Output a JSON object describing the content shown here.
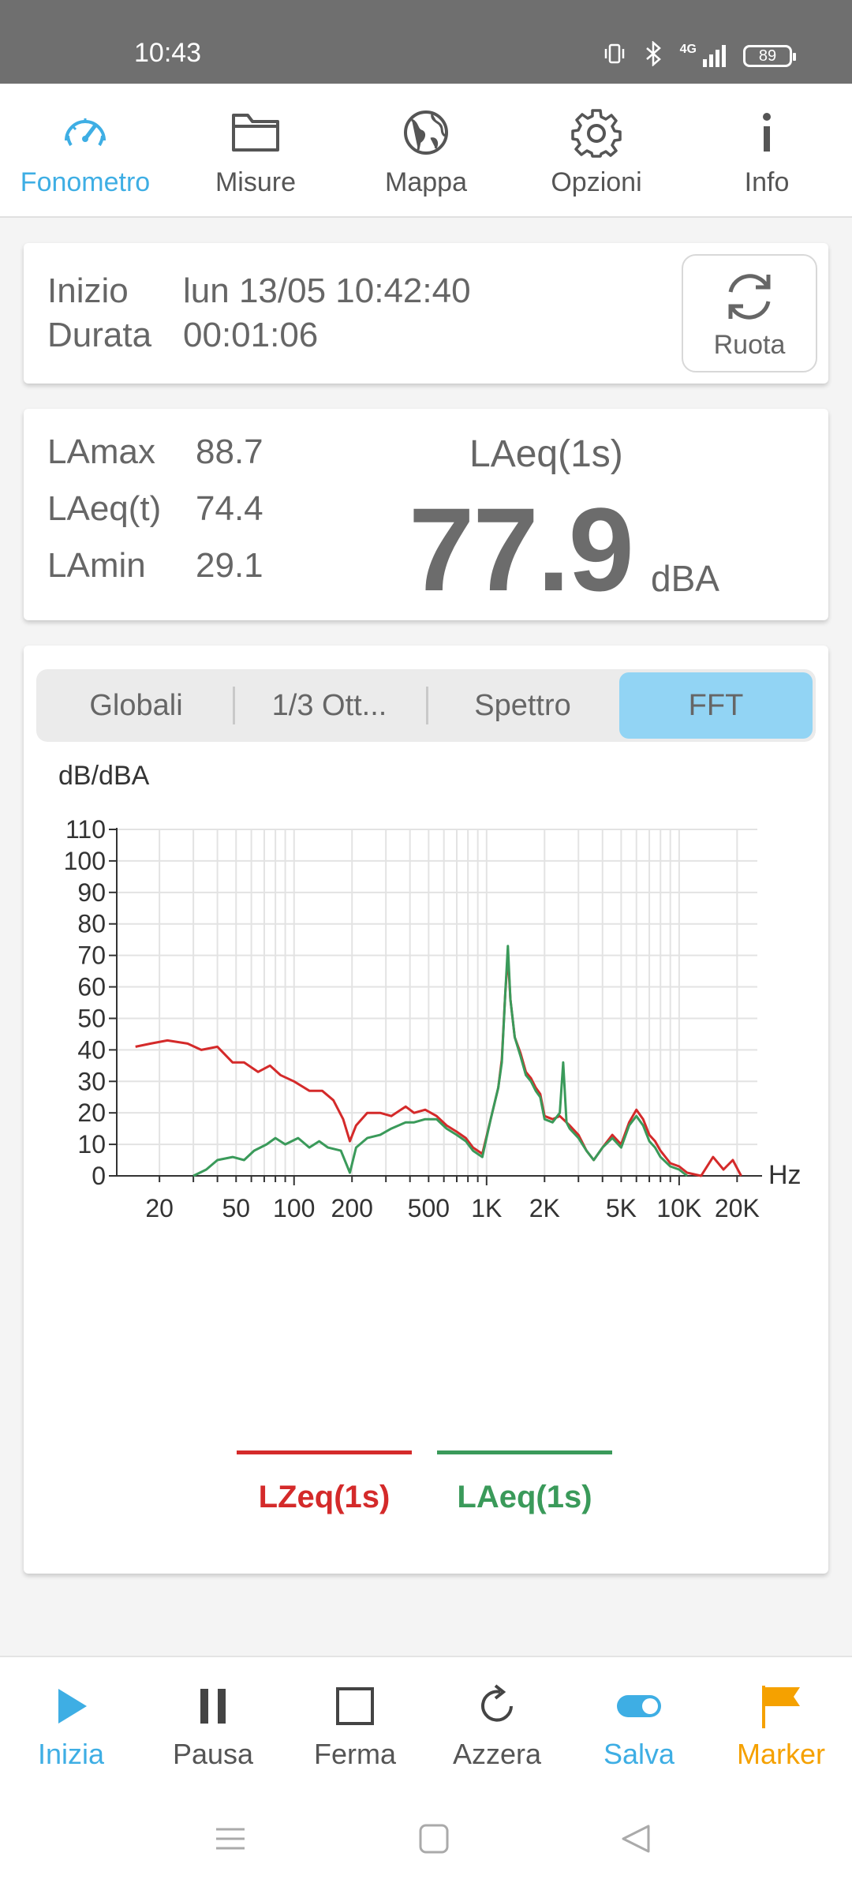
{
  "status_bar": {
    "time": "10:43",
    "network": "4G",
    "battery": "89"
  },
  "top_nav": {
    "items": [
      {
        "label": "Fonometro",
        "icon": "speedometer-icon",
        "active": true
      },
      {
        "label": "Misure",
        "icon": "folder-icon",
        "active": false
      },
      {
        "label": "Mappa",
        "icon": "globe-icon",
        "active": false
      },
      {
        "label": "Opzioni",
        "icon": "gear-icon",
        "active": false
      },
      {
        "label": "Info",
        "icon": "info-icon",
        "active": false
      }
    ]
  },
  "session": {
    "start_label": "Inizio",
    "start_value": "lun 13/05 10:42:40",
    "duration_label": "Durata",
    "duration_value": "00:01:06",
    "rotate_label": "Ruota"
  },
  "levels": {
    "lamax_label": "LAmax",
    "lamax_value": "88.7",
    "laeqt_label": "LAeq(t)",
    "laeqt_value": "74.4",
    "lamin_label": "LAmin",
    "lamin_value": "29.1",
    "main_title": "LAeq(1s)",
    "main_value": "77.9",
    "main_unit": "dBA"
  },
  "tabs": {
    "items": [
      "Globali",
      "1/3 Ott...",
      "Spettro",
      "FFT"
    ],
    "active_index": 3
  },
  "chart_data": {
    "type": "line",
    "ylabel": "dB/dBA",
    "xlabel": "Hz",
    "x_scale": "log",
    "xlim": [
      12,
      25000
    ],
    "ylim": [
      0,
      110
    ],
    "yticks": [
      0,
      10,
      20,
      30,
      40,
      50,
      60,
      70,
      80,
      90,
      100,
      110
    ],
    "xticks": [
      {
        "value": 20,
        "label": "20"
      },
      {
        "value": 50,
        "label": "50"
      },
      {
        "value": 100,
        "label": "100"
      },
      {
        "value": 200,
        "label": "200"
      },
      {
        "value": 500,
        "label": "500"
      },
      {
        "value": 1000,
        "label": "1K"
      },
      {
        "value": 2000,
        "label": "2K"
      },
      {
        "value": 5000,
        "label": "5K"
      },
      {
        "value": 10000,
        "label": "10K"
      },
      {
        "value": 20000,
        "label": "20K"
      }
    ],
    "grid": true,
    "legend_position": "bottom",
    "series": [
      {
        "name": "LZeq(1s)",
        "color": "#d42a2a",
        "points": [
          [
            15,
            41
          ],
          [
            18,
            42
          ],
          [
            22,
            43
          ],
          [
            28,
            42
          ],
          [
            33,
            40
          ],
          [
            40,
            41
          ],
          [
            48,
            36
          ],
          [
            55,
            36
          ],
          [
            65,
            33
          ],
          [
            75,
            35
          ],
          [
            85,
            32
          ],
          [
            100,
            30
          ],
          [
            120,
            27
          ],
          [
            140,
            27
          ],
          [
            160,
            24
          ],
          [
            180,
            18
          ],
          [
            195,
            11
          ],
          [
            210,
            16
          ],
          [
            240,
            20
          ],
          [
            280,
            20
          ],
          [
            320,
            19
          ],
          [
            380,
            22
          ],
          [
            420,
            20
          ],
          [
            480,
            21
          ],
          [
            550,
            19
          ],
          [
            620,
            16
          ],
          [
            700,
            14
          ],
          [
            780,
            12
          ],
          [
            850,
            9
          ],
          [
            950,
            7
          ],
          [
            1050,
            18
          ],
          [
            1150,
            28
          ],
          [
            1200,
            37
          ],
          [
            1250,
            58
          ],
          [
            1290,
            70
          ],
          [
            1330,
            56
          ],
          [
            1400,
            44
          ],
          [
            1500,
            39
          ],
          [
            1600,
            33
          ],
          [
            1700,
            31
          ],
          [
            1800,
            28
          ],
          [
            1900,
            26
          ],
          [
            2000,
            19
          ],
          [
            2200,
            18
          ],
          [
            2400,
            19
          ],
          [
            2700,
            16
          ],
          [
            3000,
            13
          ],
          [
            3300,
            8
          ],
          [
            3600,
            5
          ],
          [
            4000,
            9
          ],
          [
            4500,
            13
          ],
          [
            5000,
            10
          ],
          [
            5500,
            17
          ],
          [
            6000,
            21
          ],
          [
            6500,
            18
          ],
          [
            7000,
            13
          ],
          [
            7500,
            11
          ],
          [
            8000,
            8
          ],
          [
            9000,
            4
          ],
          [
            10000,
            3
          ],
          [
            11000,
            1
          ],
          [
            13000,
            0
          ],
          [
            15000,
            6
          ],
          [
            17000,
            2
          ],
          [
            19000,
            5
          ],
          [
            21000,
            0
          ]
        ]
      },
      {
        "name": "LAeq(1s)",
        "color": "#3a9a5a",
        "points": [
          [
            30,
            0
          ],
          [
            35,
            2
          ],
          [
            40,
            5
          ],
          [
            48,
            6
          ],
          [
            55,
            5
          ],
          [
            62,
            8
          ],
          [
            72,
            10
          ],
          [
            80,
            12
          ],
          [
            90,
            10
          ],
          [
            105,
            12
          ],
          [
            120,
            9
          ],
          [
            135,
            11
          ],
          [
            150,
            9
          ],
          [
            175,
            8
          ],
          [
            195,
            1
          ],
          [
            210,
            9
          ],
          [
            240,
            12
          ],
          [
            280,
            13
          ],
          [
            320,
            15
          ],
          [
            380,
            17
          ],
          [
            420,
            17
          ],
          [
            480,
            18
          ],
          [
            550,
            18
          ],
          [
            620,
            15
          ],
          [
            700,
            13
          ],
          [
            780,
            11
          ],
          [
            850,
            8
          ],
          [
            950,
            6
          ],
          [
            1050,
            18
          ],
          [
            1150,
            28
          ],
          [
            1200,
            36
          ],
          [
            1250,
            58
          ],
          [
            1290,
            73
          ],
          [
            1330,
            56
          ],
          [
            1400,
            44
          ],
          [
            1500,
            38
          ],
          [
            1600,
            32
          ],
          [
            1700,
            30
          ],
          [
            1800,
            27
          ],
          [
            1900,
            25
          ],
          [
            2000,
            18
          ],
          [
            2200,
            17
          ],
          [
            2400,
            20
          ],
          [
            2500,
            36
          ],
          [
            2600,
            17
          ],
          [
            2700,
            15
          ],
          [
            3000,
            12
          ],
          [
            3300,
            8
          ],
          [
            3600,
            5
          ],
          [
            4000,
            9
          ],
          [
            4500,
            12
          ],
          [
            5000,
            9
          ],
          [
            5500,
            16
          ],
          [
            6000,
            19
          ],
          [
            6500,
            16
          ],
          [
            7000,
            11
          ],
          [
            7500,
            9
          ],
          [
            8000,
            6
          ],
          [
            9000,
            3
          ],
          [
            10000,
            2
          ],
          [
            11000,
            0
          ]
        ]
      }
    ]
  },
  "toolbar": {
    "start_label": "Inizia",
    "pause_label": "Pausa",
    "stop_label": "Ferma",
    "reset_label": "Azzera",
    "save_label": "Salva",
    "marker_label": "Marker"
  },
  "colors": {
    "accent": "#3eaee4",
    "marker": "#f5a100",
    "tab_active": "#92d4f4"
  }
}
